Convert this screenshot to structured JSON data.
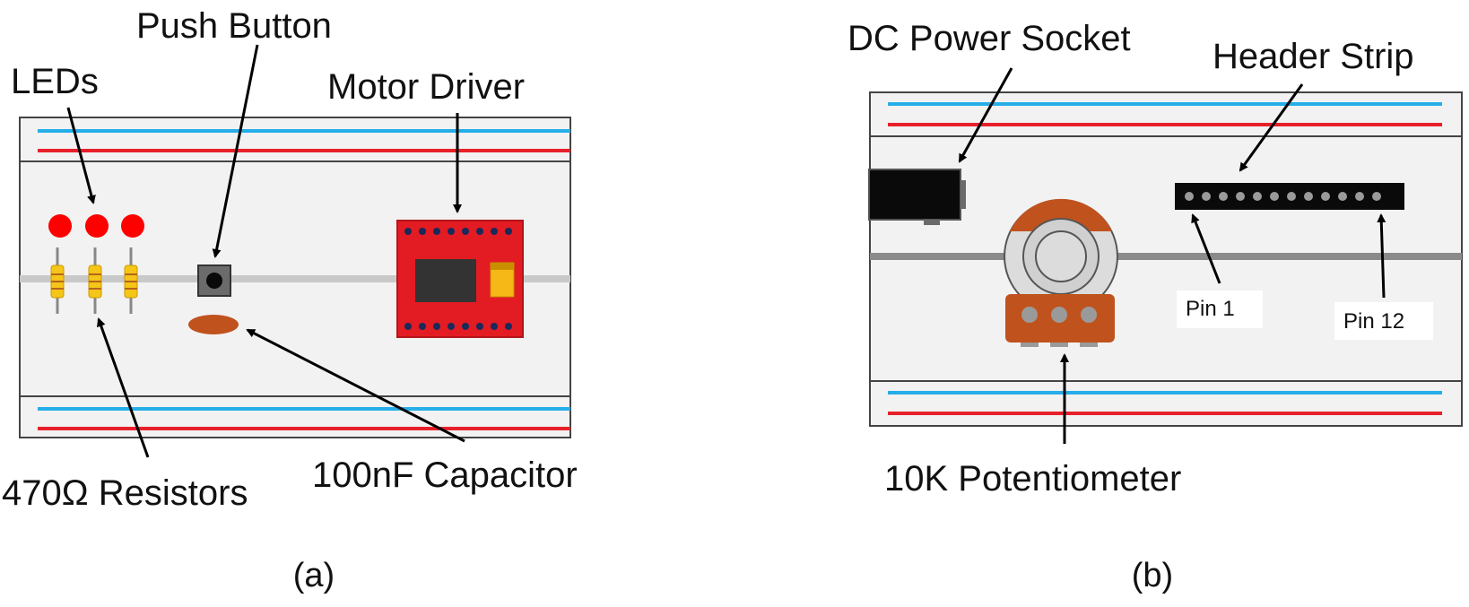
{
  "panel_a": {
    "caption": "(a)",
    "labels": {
      "leds": "LEDs",
      "push_button": "Push Button",
      "motor_driver": "Motor Driver",
      "resistors": "470Ω Resistors",
      "capacitor": "100nF Capacitor"
    }
  },
  "panel_b": {
    "caption": "(b)",
    "labels": {
      "dc_socket": "DC Power Socket",
      "header_strip": "Header Strip",
      "pin1": "Pin 1",
      "pin12": "Pin 12",
      "potentiometer": "10K Potentiometer"
    }
  },
  "colors": {
    "rail_blue": "#25aee8",
    "rail_red": "#e8202a",
    "board": "#f2f2f2",
    "led": "#ff0000",
    "resistor": "#f5c518",
    "driver": "#e31b23",
    "capacitor": "#c0521e",
    "pot_body": "#c0521e"
  }
}
